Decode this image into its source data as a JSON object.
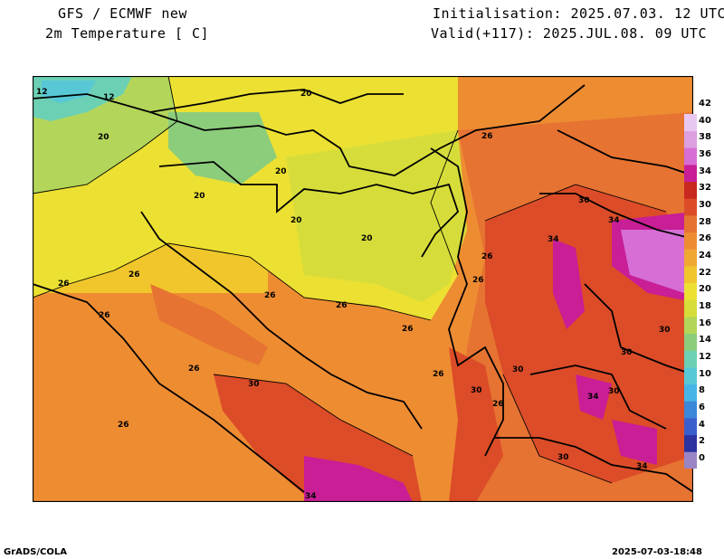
{
  "header": {
    "model": "GFS / ECMWF new",
    "variable": "2m Temperature [ C]",
    "init": "Initialisation: 2025.07.03. 12 UTC",
    "valid": "Valid(+117): 2025.JUL.08. 09 UTC"
  },
  "footer": {
    "left": "GrADS/COLA",
    "right": "2025-07-03-18:48"
  },
  "colorbar": {
    "ticks": [
      "0",
      "2",
      "4",
      "6",
      "8",
      "10",
      "12",
      "14",
      "16",
      "18",
      "20",
      "22",
      "24",
      "26",
      "28",
      "30",
      "32",
      "34",
      "36",
      "38",
      "40",
      "42"
    ],
    "colors": [
      "#9a86c4",
      "#2c32a0",
      "#3a5fcd",
      "#3b87d8",
      "#46b4e6",
      "#58c8d6",
      "#6cd1b4",
      "#8ccd7c",
      "#b3d65a",
      "#d6dd3a",
      "#ece032",
      "#f0c62c",
      "#f0a832",
      "#ee8c32",
      "#e67332",
      "#dc4c28",
      "#c8281e",
      "#c81e96",
      "#d66ed6",
      "#dca0e0",
      "#e8c8f0"
    ]
  },
  "map_labels": {
    "contour_12a": "12",
    "contour_12b": "12",
    "contour_20a": "20",
    "contour_20b": "20",
    "contour_20c": "20",
    "contour_20d": "20",
    "contour_20e": "20",
    "contour_20f": "20",
    "contour_26a": "26",
    "contour_26b": "26",
    "contour_26c": "26",
    "contour_26d": "26",
    "contour_26e": "26",
    "contour_26f": "26",
    "contour_26g": "26",
    "contour_26h": "26",
    "contour_26i": "26",
    "contour_26j": "26",
    "contour_26k": "26",
    "contour_26l": "26",
    "contour_26m": "26",
    "contour_30a": "30",
    "contour_30b": "30",
    "contour_30c": "30",
    "contour_30d": "30",
    "contour_30e": "30",
    "contour_30f": "30",
    "contour_30g": "30",
    "contour_30h": "30",
    "contour_34a": "34",
    "contour_34b": "34",
    "contour_34c": "34",
    "contour_34d": "34",
    "contour_34e": "34"
  }
}
